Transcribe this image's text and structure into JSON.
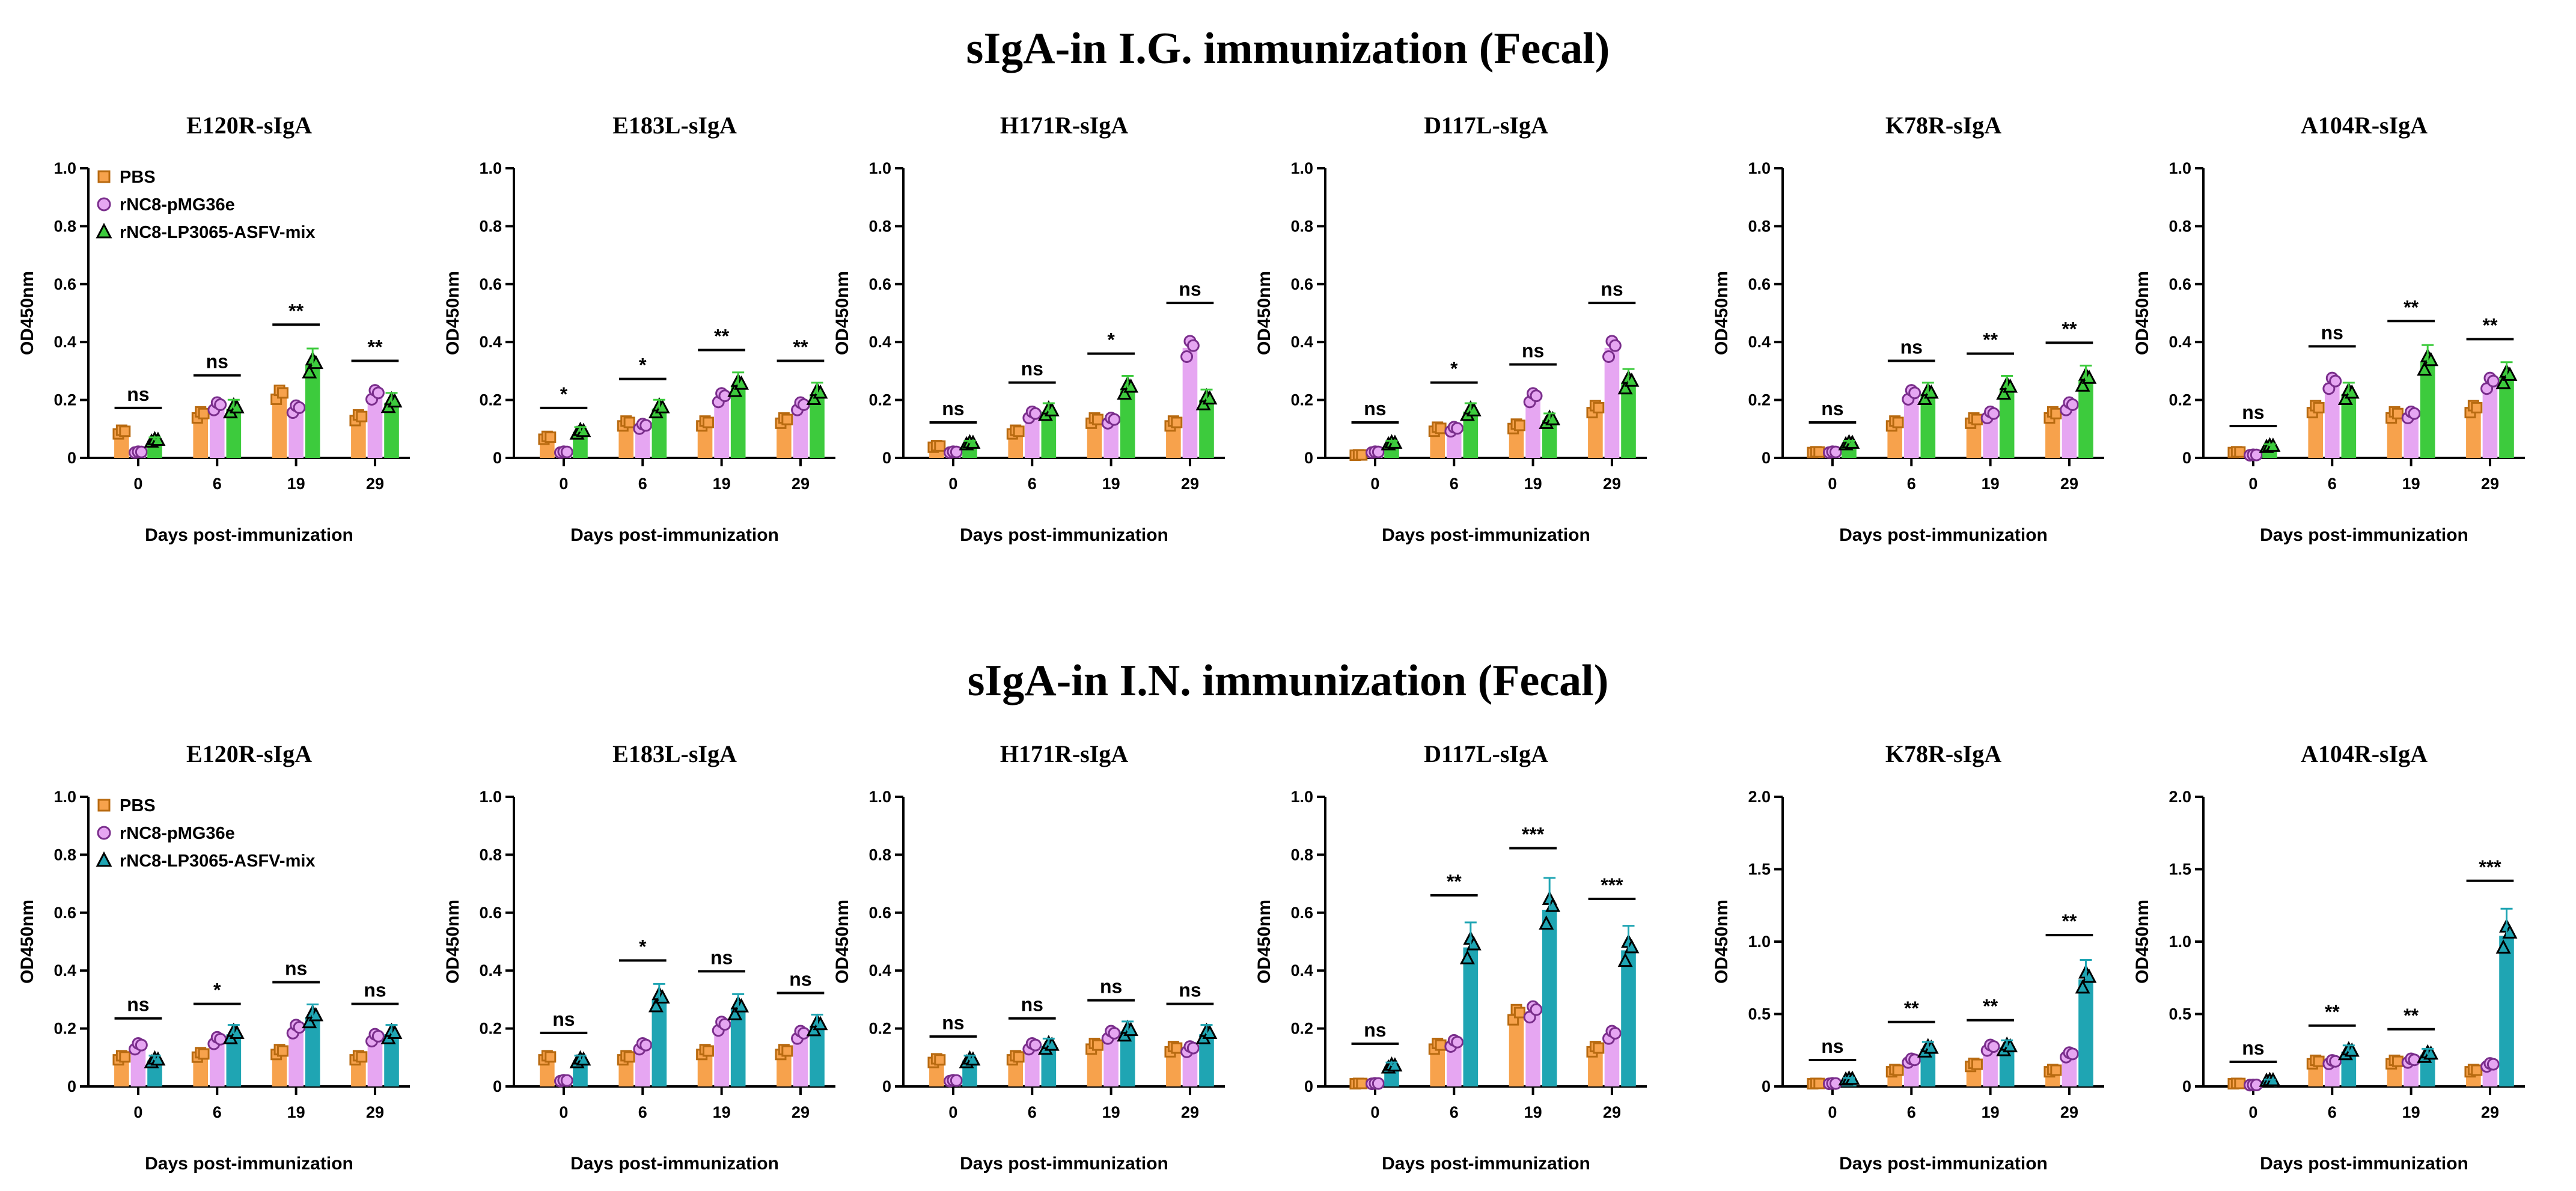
{
  "section_titles": [
    "sIgA-in I.G. immunization (Fecal)",
    "sIgA-in I.N. immunization (Fecal)"
  ],
  "colors": {
    "PBS": "#F7A24C",
    "pMG36e": "#E6A6F2",
    "mix_ig": "#3DCB3D",
    "mix_in": "#1FA5B3"
  },
  "legend": [
    "PBS",
    "rNC8-pMG36e",
    "rNC8-LP3065-ASFV-mix"
  ],
  "chart_data": [
    {
      "type": "bar",
      "title": "E120R-sIgA",
      "section": 0,
      "categories": [
        "0",
        "6",
        "19",
        "29"
      ],
      "ylabel": "OD450nm",
      "xlabel": "Days post-immunization",
      "ylim": [
        0,
        1.0
      ],
      "yticks": [
        0,
        0.2,
        0.4,
        0.6,
        0.8,
        1.0
      ],
      "legend": "top-left",
      "series": [
        {
          "name": "PBS",
          "values": [
            0.09,
            0.15,
            0.22,
            0.14
          ]
        },
        {
          "name": "rNC8-pMG36e",
          "values": [
            0.02,
            0.18,
            0.17,
            0.22
          ]
        },
        {
          "name": "rNC8-LP3065-ASFV-mix",
          "values": [
            0.06,
            0.17,
            0.32,
            0.19
          ]
        }
      ],
      "significance": [
        "ns",
        "ns",
        "**",
        "**"
      ]
    },
    {
      "type": "bar",
      "title": "E183L-sIgA",
      "section": 0,
      "categories": [
        "0",
        "6",
        "19",
        "29"
      ],
      "ylabel": "OD450nm",
      "xlabel": "Days post-immunization",
      "ylim": [
        0,
        1.0
      ],
      "yticks": [
        0,
        0.2,
        0.4,
        0.6,
        0.8,
        1.0
      ],
      "series": [
        {
          "name": "PBS",
          "values": [
            0.07,
            0.12,
            0.12,
            0.13
          ]
        },
        {
          "name": "rNC8-pMG36e",
          "values": [
            0.02,
            0.11,
            0.21,
            0.18
          ]
        },
        {
          "name": "rNC8-LP3065-ASFV-mix",
          "values": [
            0.09,
            0.17,
            0.25,
            0.22
          ]
        }
      ],
      "significance": [
        "*",
        "*",
        "**",
        "**"
      ]
    },
    {
      "type": "bar",
      "title": "H171R-sIgA",
      "section": 0,
      "categories": [
        "0",
        "6",
        "19",
        "29"
      ],
      "ylabel": "OD450nm",
      "xlabel": "Days post-immunization",
      "ylim": [
        0,
        1.0
      ],
      "yticks": [
        0,
        0.2,
        0.4,
        0.6,
        0.8,
        1.0
      ],
      "series": [
        {
          "name": "PBS",
          "values": [
            0.04,
            0.09,
            0.13,
            0.12
          ]
        },
        {
          "name": "rNC8-pMG36e",
          "values": [
            0.02,
            0.15,
            0.13,
            0.38
          ]
        },
        {
          "name": "rNC8-LP3065-ASFV-mix",
          "values": [
            0.05,
            0.16,
            0.24,
            0.2
          ]
        }
      ],
      "significance": [
        "ns",
        "ns",
        "*",
        "ns"
      ]
    },
    {
      "type": "bar",
      "title": "D117L-sIgA",
      "section": 0,
      "categories": [
        "0",
        "6",
        "19",
        "29"
      ],
      "ylabel": "OD450nm",
      "xlabel": "Days post-immunization",
      "ylim": [
        0,
        1.0
      ],
      "yticks": [
        0,
        0.2,
        0.4,
        0.6,
        0.8,
        1.0
      ],
      "series": [
        {
          "name": "PBS",
          "values": [
            0.01,
            0.1,
            0.11,
            0.17
          ]
        },
        {
          "name": "rNC8-pMG36e",
          "values": [
            0.02,
            0.1,
            0.21,
            0.38
          ]
        },
        {
          "name": "rNC8-LP3065-ASFV-mix",
          "values": [
            0.05,
            0.16,
            0.13,
            0.26
          ]
        }
      ],
      "significance": [
        "ns",
        "*",
        "ns",
        "ns"
      ]
    },
    {
      "type": "bar",
      "title": "K78R-sIgA",
      "section": 0,
      "categories": [
        "0",
        "6",
        "19",
        "29"
      ],
      "ylabel": "OD450nm",
      "xlabel": "Days post-immunization",
      "ylim": [
        0,
        1.0
      ],
      "yticks": [
        0,
        0.2,
        0.4,
        0.6,
        0.8,
        1.0
      ],
      "series": [
        {
          "name": "PBS",
          "values": [
            0.02,
            0.12,
            0.13,
            0.15
          ]
        },
        {
          "name": "rNC8-pMG36e",
          "values": [
            0.02,
            0.22,
            0.15,
            0.18
          ]
        },
        {
          "name": "rNC8-LP3065-ASFV-mix",
          "values": [
            0.05,
            0.22,
            0.24,
            0.27
          ]
        }
      ],
      "significance": [
        "ns",
        "ns",
        "**",
        "**"
      ]
    },
    {
      "type": "bar",
      "title": "A104R-sIgA",
      "section": 0,
      "categories": [
        "0",
        "6",
        "19",
        "29"
      ],
      "ylabel": "OD450nm",
      "xlabel": "Days post-immunization",
      "ylim": [
        0,
        1.0
      ],
      "yticks": [
        0,
        0.2,
        0.4,
        0.6,
        0.8,
        1.0
      ],
      "series": [
        {
          "name": "PBS",
          "values": [
            0.02,
            0.17,
            0.15,
            0.17
          ]
        },
        {
          "name": "rNC8-pMG36e",
          "values": [
            0.01,
            0.26,
            0.15,
            0.26
          ]
        },
        {
          "name": "rNC8-LP3065-ASFV-mix",
          "values": [
            0.04,
            0.22,
            0.33,
            0.28
          ]
        }
      ],
      "significance": [
        "ns",
        "ns",
        "**",
        "**"
      ]
    },
    {
      "type": "bar",
      "title": "E120R-sIgA",
      "section": 1,
      "categories": [
        "0",
        "6",
        "19",
        "29"
      ],
      "ylabel": "OD450nm",
      "xlabel": "Days post-immunization",
      "ylim": [
        0,
        1.0
      ],
      "yticks": [
        0,
        0.2,
        0.4,
        0.6,
        0.8,
        1.0
      ],
      "legend": "top-left",
      "series": [
        {
          "name": "PBS",
          "values": [
            0.1,
            0.11,
            0.12,
            0.1
          ]
        },
        {
          "name": "rNC8-pMG36e",
          "values": [
            0.14,
            0.16,
            0.2,
            0.17
          ]
        },
        {
          "name": "rNC8-LP3065-ASFV-mix",
          "values": [
            0.09,
            0.18,
            0.24,
            0.18
          ]
        }
      ],
      "significance": [
        "ns",
        "*",
        "ns",
        "ns"
      ]
    },
    {
      "type": "bar",
      "title": "E183L-sIgA",
      "section": 1,
      "categories": [
        "0",
        "6",
        "19",
        "29"
      ],
      "ylabel": "OD450nm",
      "xlabel": "Days post-immunization",
      "ylim": [
        0,
        1.0
      ],
      "yticks": [
        0,
        0.2,
        0.4,
        0.6,
        0.8,
        1.0
      ],
      "series": [
        {
          "name": "PBS",
          "values": [
            0.1,
            0.1,
            0.12,
            0.12
          ]
        },
        {
          "name": "rNC8-pMG36e",
          "values": [
            0.02,
            0.14,
            0.21,
            0.18
          ]
        },
        {
          "name": "rNC8-LP3065-ASFV-mix",
          "values": [
            0.09,
            0.3,
            0.27,
            0.21
          ]
        }
      ],
      "significance": [
        "ns",
        "*",
        "ns",
        "ns"
      ]
    },
    {
      "type": "bar",
      "title": "H171R-sIgA",
      "section": 1,
      "categories": [
        "0",
        "6",
        "19",
        "29"
      ],
      "ylabel": "OD450nm",
      "xlabel": "Days post-immunization",
      "ylim": [
        0,
        1.0
      ],
      "yticks": [
        0,
        0.2,
        0.4,
        0.6,
        0.8,
        1.0
      ],
      "series": [
        {
          "name": "PBS",
          "values": [
            0.09,
            0.1,
            0.14,
            0.13
          ]
        },
        {
          "name": "rNC8-pMG36e",
          "values": [
            0.02,
            0.14,
            0.18,
            0.13
          ]
        },
        {
          "name": "rNC8-LP3065-ASFV-mix",
          "values": [
            0.09,
            0.14,
            0.19,
            0.18
          ]
        }
      ],
      "significance": [
        "ns",
        "ns",
        "ns",
        "ns"
      ]
    },
    {
      "type": "bar",
      "title": "D117L-sIgA",
      "section": 1,
      "categories": [
        "0",
        "6",
        "19",
        "29"
      ],
      "ylabel": "OD450nm",
      "xlabel": "Days post-immunization",
      "ylim": [
        0,
        1.0
      ],
      "yticks": [
        0,
        0.2,
        0.4,
        0.6,
        0.8,
        1.0
      ],
      "series": [
        {
          "name": "PBS",
          "values": [
            0.01,
            0.14,
            0.25,
            0.13
          ]
        },
        {
          "name": "rNC8-pMG36e",
          "values": [
            0.01,
            0.15,
            0.26,
            0.18
          ]
        },
        {
          "name": "rNC8-LP3065-ASFV-mix",
          "values": [
            0.07,
            0.48,
            0.61,
            0.47
          ]
        }
      ],
      "significance": [
        "ns",
        "**",
        "***",
        "***"
      ]
    },
    {
      "type": "bar",
      "title": "K78R-sIgA",
      "section": 1,
      "categories": [
        "0",
        "6",
        "19",
        "29"
      ],
      "ylabel": "OD450nm",
      "xlabel": "Days post-immunization",
      "ylim": [
        0,
        2.0
      ],
      "yticks": [
        0,
        0.5,
        1.0,
        1.5,
        2.0
      ],
      "series": [
        {
          "name": "PBS",
          "values": [
            0.02,
            0.11,
            0.15,
            0.11
          ]
        },
        {
          "name": "rNC8-pMG36e",
          "values": [
            0.02,
            0.18,
            0.27,
            0.22
          ]
        },
        {
          "name": "rNC8-LP3065-ASFV-mix",
          "values": [
            0.05,
            0.26,
            0.27,
            0.74
          ]
        }
      ],
      "significance": [
        "ns",
        "**",
        "**",
        "**"
      ]
    },
    {
      "type": "bar",
      "title": "A104R-sIgA",
      "section": 1,
      "categories": [
        "0",
        "6",
        "19",
        "29"
      ],
      "ylabel": "OD450nm",
      "xlabel": "Days post-immunization",
      "ylim": [
        0,
        2.0
      ],
      "yticks": [
        0,
        0.5,
        1.0,
        1.5,
        2.0
      ],
      "series": [
        {
          "name": "PBS",
          "values": [
            0.02,
            0.17,
            0.17,
            0.11
          ]
        },
        {
          "name": "rNC8-pMG36e",
          "values": [
            0.01,
            0.17,
            0.18,
            0.15
          ]
        },
        {
          "name": "rNC8-LP3065-ASFV-mix",
          "values": [
            0.04,
            0.24,
            0.22,
            1.04
          ]
        }
      ],
      "significance": [
        "ns",
        "**",
        "**",
        "***"
      ]
    }
  ]
}
